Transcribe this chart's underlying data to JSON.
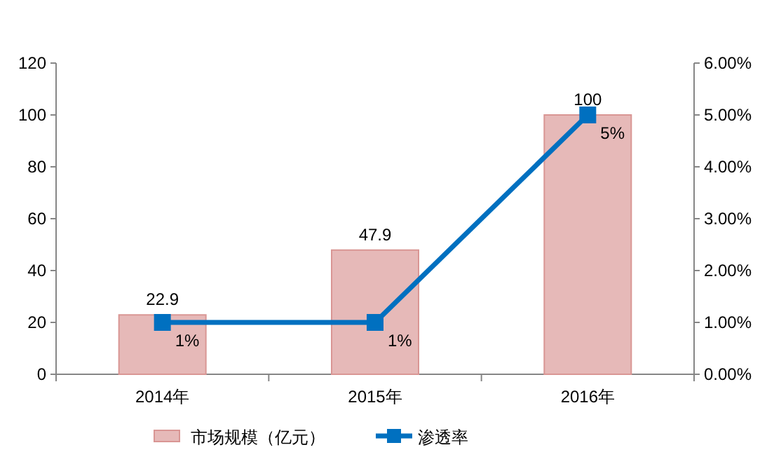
{
  "chart_data": {
    "type": "bar",
    "categories": [
      "2014年",
      "2015年",
      "2016年"
    ],
    "series": [
      {
        "name": "市场规模（亿元）",
        "color": "#e6b9b8",
        "values": [
          22.9,
          47.9,
          100
        ],
        "value_labels": [
          "22.9",
          "47.9",
          "100"
        ]
      },
      {
        "name": "渗透率",
        "type": "line",
        "axis": "y2",
        "color": "#0070c0",
        "marker": "square",
        "values": [
          1,
          1,
          5
        ],
        "value_labels": [
          "1%",
          "1%",
          "5%"
        ]
      }
    ],
    "ylim": [
      0,
      120
    ],
    "yticks": [
      0,
      20,
      40,
      60,
      80,
      100,
      120
    ],
    "y2lim": [
      0,
      6
    ],
    "y2ticks": [
      {
        "value": 0,
        "label": "0.00%"
      },
      {
        "value": 1,
        "label": "1.00%"
      },
      {
        "value": 2,
        "label": "2.00%"
      },
      {
        "value": 3,
        "label": "3.00%"
      },
      {
        "value": 4,
        "label": "4.00%"
      },
      {
        "value": 5,
        "label": "5.00%"
      },
      {
        "value": 6,
        "label": "6.00%"
      }
    ],
    "grid": false,
    "legend": "bottom"
  }
}
